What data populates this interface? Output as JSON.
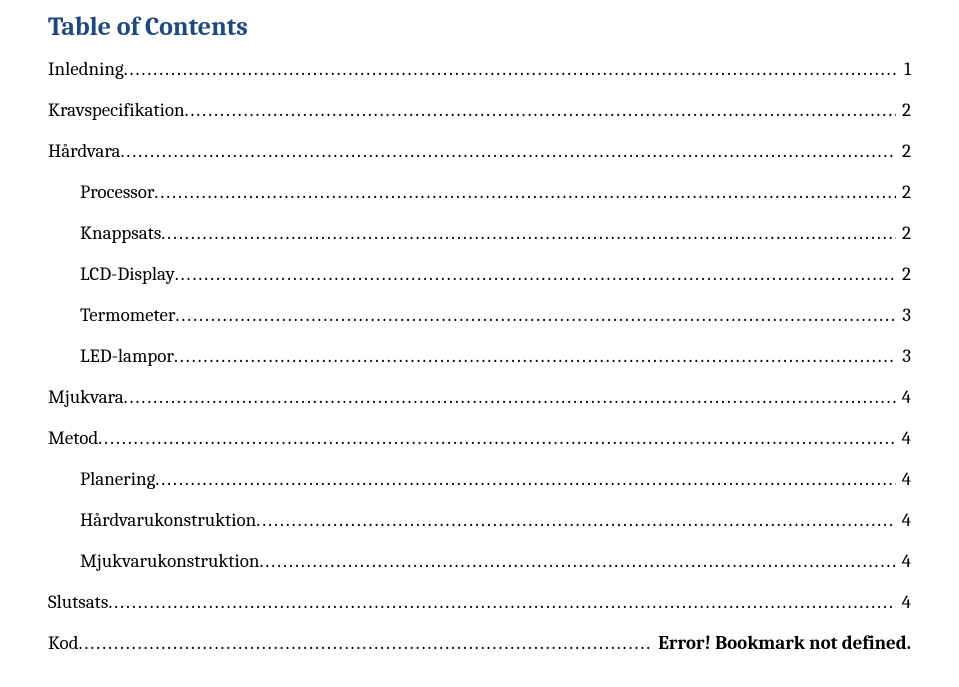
{
  "title": "Table of Contents",
  "title_color": "#1f497d",
  "body_font": "Cambria, Georgia, serif",
  "background_color": "#ffffff",
  "text_color": "#000000",
  "font_size_title": 26,
  "font_size_body": 19,
  "entries": [
    {
      "label": "Inledning",
      "page": "1",
      "indent": 0
    },
    {
      "label": "Kravspecifikation",
      "page": "2",
      "indent": 0
    },
    {
      "label": "Hårdvara",
      "page": "2",
      "indent": 0
    },
    {
      "label": "Processor",
      "page": "2",
      "indent": 1
    },
    {
      "label": "Knappsats",
      "page": "2",
      "indent": 1
    },
    {
      "label": "LCD-Display",
      "page": "2",
      "indent": 1
    },
    {
      "label": "Termometer",
      "page": "3",
      "indent": 1
    },
    {
      "label": "LED-lampor",
      "page": "3",
      "indent": 1
    },
    {
      "label": "Mjukvara",
      "page": "4",
      "indent": 0
    },
    {
      "label": "Metod",
      "page": "4",
      "indent": 0
    },
    {
      "label": "Planering",
      "page": "4",
      "indent": 1
    },
    {
      "label": "Hårdvarukonstruktion",
      "page": "4",
      "indent": 1
    },
    {
      "label": "Mjukvarukonstruktion",
      "page": "4",
      "indent": 1
    },
    {
      "label": "Slutsats",
      "page": "4",
      "indent": 0
    },
    {
      "label": "Kod",
      "page": "Error! Bookmark not defined.",
      "indent": 0,
      "error": true
    }
  ]
}
